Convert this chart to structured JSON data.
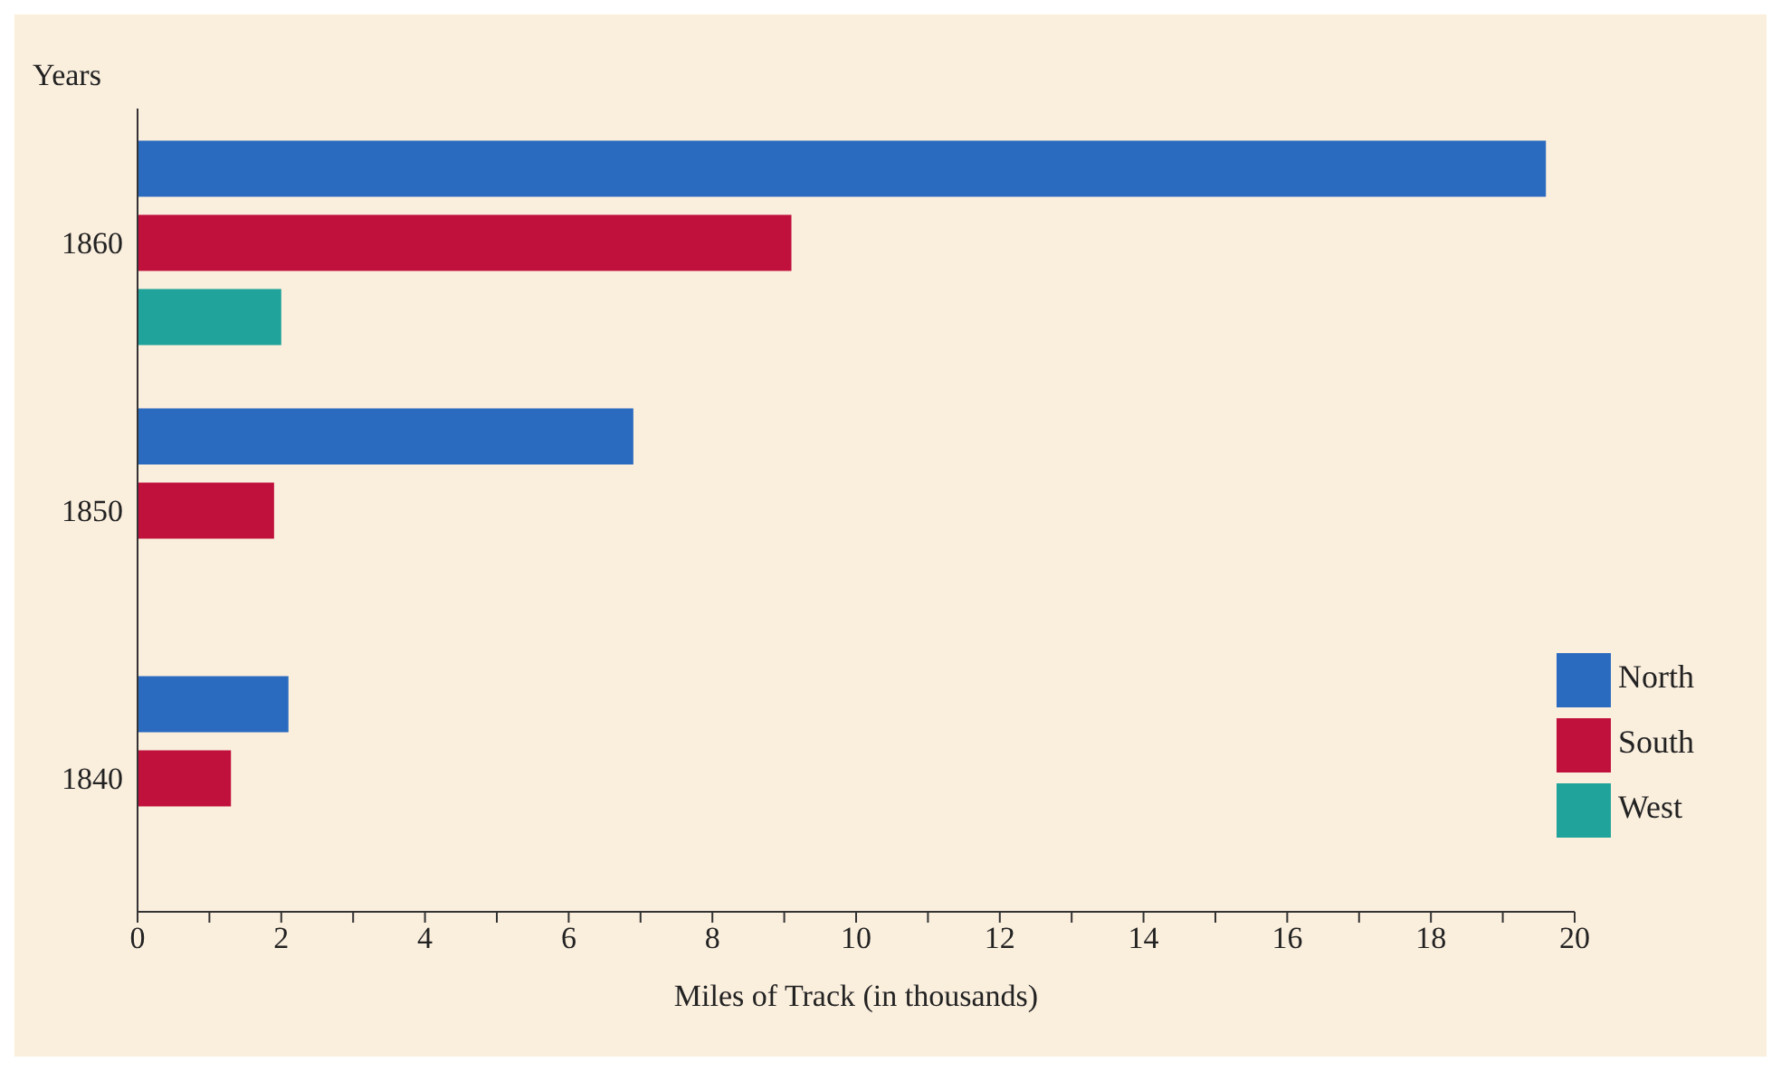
{
  "chart_data": {
    "type": "bar",
    "orientation": "horizontal",
    "ylabel": "Years",
    "xlabel": "Miles of Track (in thousands)",
    "categories": [
      "1860",
      "1850",
      "1840"
    ],
    "series": [
      {
        "name": "North",
        "color": "#2a6bbf",
        "values": [
          19.6,
          6.9,
          2.1
        ]
      },
      {
        "name": "South",
        "color": "#c0103c",
        "values": [
          9.1,
          1.9,
          1.3
        ]
      },
      {
        "name": "West",
        "color": "#1fa39a",
        "values": [
          2.0,
          null,
          null
        ]
      }
    ],
    "xlim": [
      0,
      20
    ],
    "xticks": [
      0,
      {
        "value": 1,
        "label": null
      },
      2,
      {
        "value": 3,
        "label": null
      },
      4,
      {
        "value": 5,
        "label": null
      },
      6,
      {
        "value": 7,
        "label": null
      },
      8,
      {
        "value": 9,
        "label": null
      },
      10,
      {
        "value": 11,
        "label": null
      },
      12,
      {
        "value": 13,
        "label": null
      },
      14,
      {
        "value": 15,
        "label": null
      },
      16,
      {
        "value": 17,
        "label": null
      },
      18,
      {
        "value": 19,
        "label": null
      },
      20
    ],
    "grid": false,
    "legend": "bottom right"
  }
}
